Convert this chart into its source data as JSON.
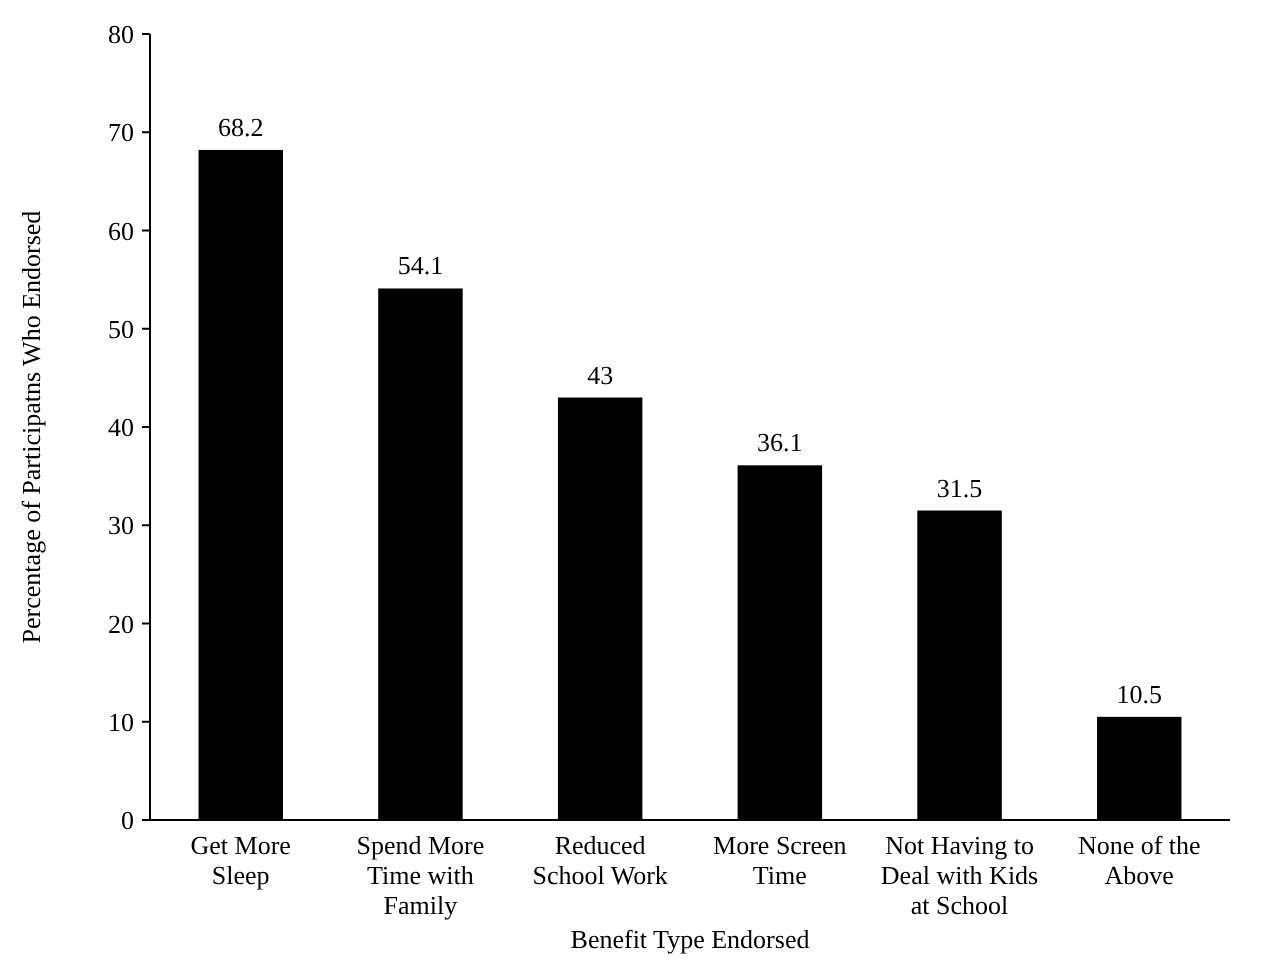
{
  "chart_data": {
    "type": "bar",
    "xlabel": "Benefit Type Endorsed",
    "ylabel": "Percentage of Participatns Who Endorsed",
    "categories": [
      "Get More Sleep",
      "Spend More Time with Family",
      "Reduced School Work",
      "More Screen Time",
      "Not Having to Deal with Kids at School",
      "None of the Above"
    ],
    "values": [
      68.2,
      54.1,
      43,
      36.1,
      31.5,
      10.5
    ],
    "color": "#000000",
    "ylim": [
      0,
      80
    ],
    "yticks": [
      0,
      10,
      20,
      30,
      40,
      50,
      60,
      70,
      80
    ],
    "grid": false,
    "data_labels": true
  }
}
